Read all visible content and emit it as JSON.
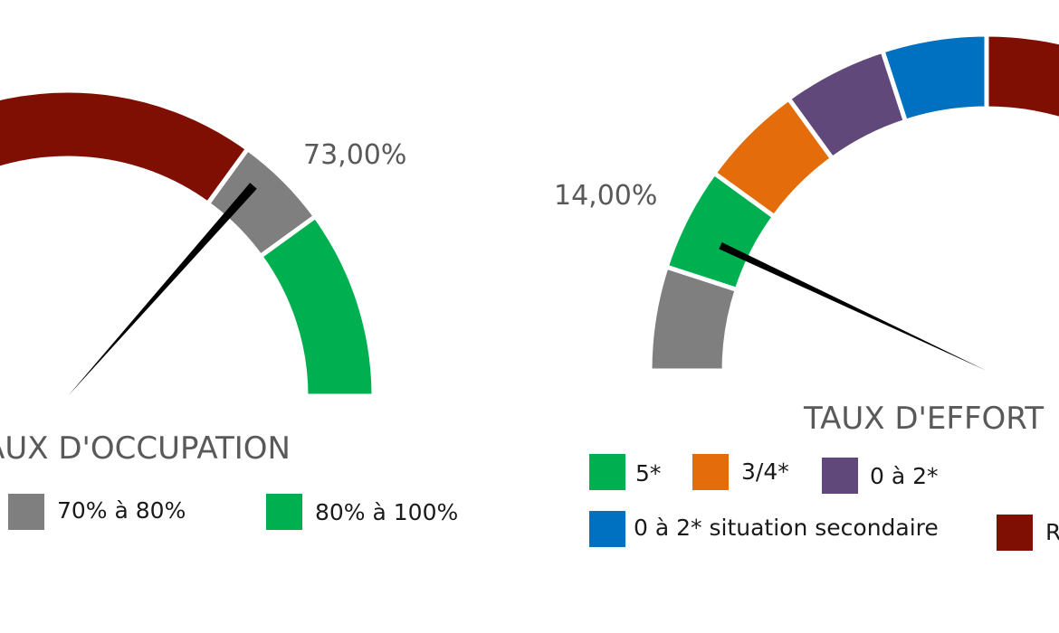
{
  "chart_data": [
    {
      "type": "gauge",
      "title": "TAUX D'OCCUPATION",
      "value": 73,
      "value_label": "73,00%",
      "range": [
        0,
        100
      ],
      "bands": [
        {
          "name": "",
          "from": 0,
          "to": 70,
          "color": "#7F0F03"
        },
        {
          "name": "70% à 80%",
          "from": 70,
          "to": 80,
          "color": "#7F7F7F"
        },
        {
          "name": "80% à 100%",
          "from": 80,
          "to": 100,
          "color": "#00B050"
        }
      ],
      "legend": [
        "70% à 80%",
        "80% à 100%"
      ]
    },
    {
      "type": "gauge",
      "title": "TAUX D'EFFORT",
      "value": 14,
      "value_label": "14,00%",
      "range": [
        0,
        100
      ],
      "bands": [
        {
          "name": "",
          "from": 0,
          "to": 10,
          "color": "#7F7F7F"
        },
        {
          "name": "5*",
          "from": 10,
          "to": 20,
          "color": "#00B050"
        },
        {
          "name": "3/4*",
          "from": 20,
          "to": 30,
          "color": "#E46C0A"
        },
        {
          "name": "0 à 2*",
          "from": 30,
          "to": 40,
          "color": "#60497A"
        },
        {
          "name": "0 à 2* situation secondaire",
          "from": 40,
          "to": 50,
          "color": "#0070C0"
        },
        {
          "name": "R",
          "from": 50,
          "to": 60,
          "color": "#7F0F03"
        }
      ],
      "legend": [
        "5*",
        "3/4*",
        "0 à 2*",
        "0 à 2* situation secondaire",
        "R"
      ]
    }
  ]
}
